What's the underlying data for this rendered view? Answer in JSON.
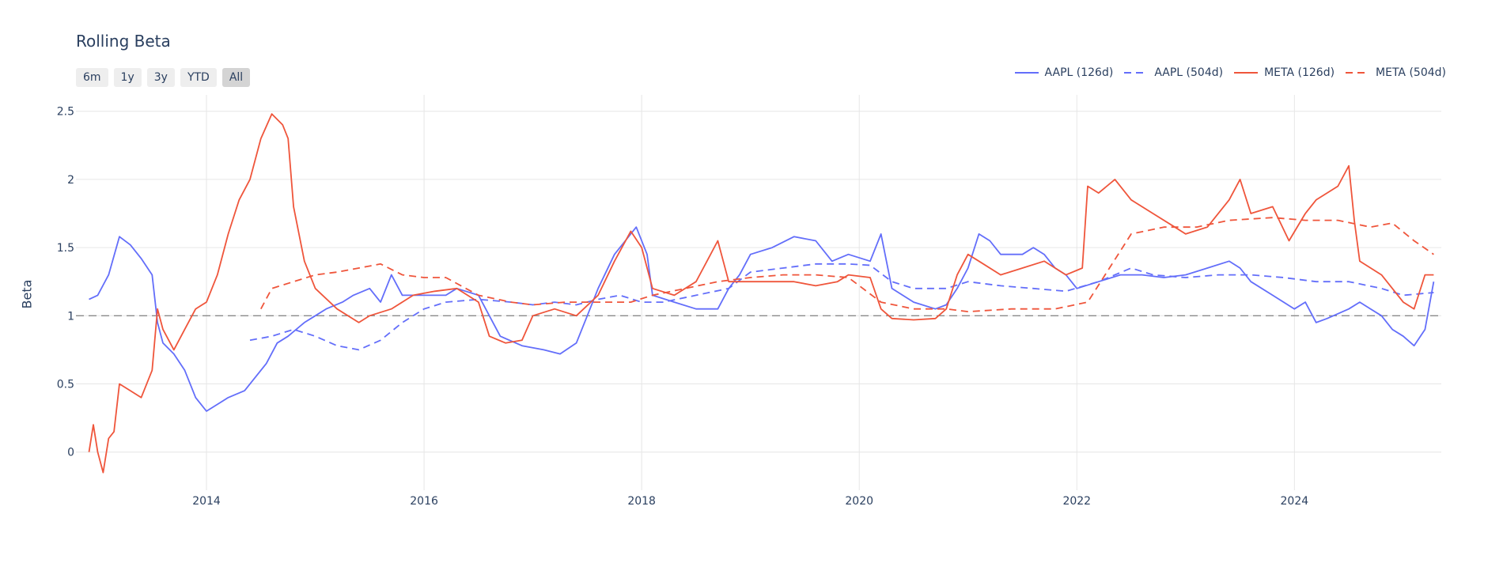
{
  "title": "Rolling Beta",
  "range_buttons": [
    {
      "label": "6m",
      "active": false
    },
    {
      "label": "1y",
      "active": false
    },
    {
      "label": "3y",
      "active": false
    },
    {
      "label": "YTD",
      "active": false
    },
    {
      "label": "All",
      "active": true
    }
  ],
  "colors": {
    "aapl": "#636efa",
    "meta": "#ef553b",
    "reference": "#8a8a8a",
    "grid": "#e6e6e6"
  },
  "chart_data": {
    "type": "line",
    "title": "Rolling Beta",
    "xlabel": "",
    "ylabel": "Beta",
    "xlim": [
      2012.8,
      2025.35
    ],
    "ylim": [
      -0.28,
      2.62
    ],
    "x_ticks": [
      "2014",
      "2016",
      "2018",
      "2020",
      "2022",
      "2024"
    ],
    "y_ticks": [
      "0",
      "0.5",
      "1",
      "1.5",
      "2",
      "2.5"
    ],
    "grid": true,
    "legend_position": "top-right",
    "reference_line": {
      "y": 1,
      "style": "dashed"
    },
    "series": [
      {
        "name": "AAPL (126d)",
        "color": "#636efa",
        "dash": "solid",
        "points": [
          [
            2012.92,
            1.12
          ],
          [
            2013.0,
            1.15
          ],
          [
            2013.1,
            1.3
          ],
          [
            2013.2,
            1.58
          ],
          [
            2013.3,
            1.52
          ],
          [
            2013.4,
            1.42
          ],
          [
            2013.5,
            1.3
          ],
          [
            2013.55,
            0.95
          ],
          [
            2013.6,
            0.8
          ],
          [
            2013.7,
            0.72
          ],
          [
            2013.8,
            0.6
          ],
          [
            2013.9,
            0.4
          ],
          [
            2014.0,
            0.3
          ],
          [
            2014.1,
            0.35
          ],
          [
            2014.2,
            0.4
          ],
          [
            2014.35,
            0.45
          ],
          [
            2014.45,
            0.55
          ],
          [
            2014.55,
            0.65
          ],
          [
            2014.65,
            0.8
          ],
          [
            2014.75,
            0.85
          ],
          [
            2014.9,
            0.95
          ],
          [
            2015.0,
            1.0
          ],
          [
            2015.1,
            1.05
          ],
          [
            2015.25,
            1.1
          ],
          [
            2015.35,
            1.15
          ],
          [
            2015.5,
            1.2
          ],
          [
            2015.6,
            1.1
          ],
          [
            2015.7,
            1.3
          ],
          [
            2015.8,
            1.15
          ],
          [
            2016.0,
            1.15
          ],
          [
            2016.2,
            1.15
          ],
          [
            2016.3,
            1.2
          ],
          [
            2016.5,
            1.15
          ],
          [
            2016.6,
            1.0
          ],
          [
            2016.7,
            0.85
          ],
          [
            2016.9,
            0.78
          ],
          [
            2017.1,
            0.75
          ],
          [
            2017.25,
            0.72
          ],
          [
            2017.4,
            0.8
          ],
          [
            2017.5,
            1.0
          ],
          [
            2017.6,
            1.2
          ],
          [
            2017.75,
            1.45
          ],
          [
            2017.85,
            1.55
          ],
          [
            2017.95,
            1.65
          ],
          [
            2018.05,
            1.45
          ],
          [
            2018.1,
            1.15
          ],
          [
            2018.3,
            1.1
          ],
          [
            2018.5,
            1.05
          ],
          [
            2018.7,
            1.05
          ],
          [
            2018.8,
            1.2
          ],
          [
            2018.9,
            1.3
          ],
          [
            2019.0,
            1.45
          ],
          [
            2019.2,
            1.5
          ],
          [
            2019.4,
            1.58
          ],
          [
            2019.6,
            1.55
          ],
          [
            2019.75,
            1.4
          ],
          [
            2019.9,
            1.45
          ],
          [
            2020.1,
            1.4
          ],
          [
            2020.2,
            1.6
          ],
          [
            2020.3,
            1.2
          ],
          [
            2020.5,
            1.1
          ],
          [
            2020.7,
            1.05
          ],
          [
            2020.8,
            1.08
          ],
          [
            2020.9,
            1.2
          ],
          [
            2021.0,
            1.35
          ],
          [
            2021.1,
            1.6
          ],
          [
            2021.2,
            1.55
          ],
          [
            2021.3,
            1.45
          ],
          [
            2021.5,
            1.45
          ],
          [
            2021.6,
            1.5
          ],
          [
            2021.7,
            1.45
          ],
          [
            2021.8,
            1.35
          ],
          [
            2021.9,
            1.3
          ],
          [
            2022.0,
            1.2
          ],
          [
            2022.2,
            1.25
          ],
          [
            2022.4,
            1.3
          ],
          [
            2022.6,
            1.3
          ],
          [
            2022.8,
            1.28
          ],
          [
            2023.0,
            1.3
          ],
          [
            2023.2,
            1.35
          ],
          [
            2023.4,
            1.4
          ],
          [
            2023.5,
            1.35
          ],
          [
            2023.6,
            1.25
          ],
          [
            2023.8,
            1.15
          ],
          [
            2024.0,
            1.05
          ],
          [
            2024.1,
            1.1
          ],
          [
            2024.2,
            0.95
          ],
          [
            2024.3,
            0.98
          ],
          [
            2024.5,
            1.05
          ],
          [
            2024.6,
            1.1
          ],
          [
            2024.7,
            1.05
          ],
          [
            2024.8,
            1.0
          ],
          [
            2024.9,
            0.9
          ],
          [
            2025.0,
            0.85
          ],
          [
            2025.1,
            0.78
          ],
          [
            2025.2,
            0.9
          ],
          [
            2025.28,
            1.25
          ]
        ]
      },
      {
        "name": "AAPL (504d)",
        "color": "#636efa",
        "dash": "dashed",
        "points": [
          [
            2014.4,
            0.82
          ],
          [
            2014.6,
            0.85
          ],
          [
            2014.8,
            0.9
          ],
          [
            2015.0,
            0.85
          ],
          [
            2015.2,
            0.78
          ],
          [
            2015.4,
            0.75
          ],
          [
            2015.6,
            0.82
          ],
          [
            2015.8,
            0.95
          ],
          [
            2016.0,
            1.05
          ],
          [
            2016.2,
            1.1
          ],
          [
            2016.5,
            1.12
          ],
          [
            2016.8,
            1.1
          ],
          [
            2017.0,
            1.08
          ],
          [
            2017.2,
            1.1
          ],
          [
            2017.4,
            1.08
          ],
          [
            2017.6,
            1.12
          ],
          [
            2017.8,
            1.15
          ],
          [
            2018.0,
            1.1
          ],
          [
            2018.2,
            1.1
          ],
          [
            2018.5,
            1.15
          ],
          [
            2018.8,
            1.2
          ],
          [
            2019.0,
            1.32
          ],
          [
            2019.3,
            1.35
          ],
          [
            2019.6,
            1.38
          ],
          [
            2019.9,
            1.38
          ],
          [
            2020.1,
            1.37
          ],
          [
            2020.3,
            1.25
          ],
          [
            2020.5,
            1.2
          ],
          [
            2020.8,
            1.2
          ],
          [
            2021.0,
            1.25
          ],
          [
            2021.3,
            1.22
          ],
          [
            2021.6,
            1.2
          ],
          [
            2021.9,
            1.18
          ],
          [
            2022.2,
            1.25
          ],
          [
            2022.5,
            1.35
          ],
          [
            2022.7,
            1.3
          ],
          [
            2023.0,
            1.28
          ],
          [
            2023.3,
            1.3
          ],
          [
            2023.6,
            1.3
          ],
          [
            2023.9,
            1.28
          ],
          [
            2024.2,
            1.25
          ],
          [
            2024.5,
            1.25
          ],
          [
            2024.8,
            1.2
          ],
          [
            2025.0,
            1.15
          ],
          [
            2025.28,
            1.17
          ]
        ]
      },
      {
        "name": "META (126d)",
        "color": "#ef553b",
        "dash": "solid",
        "points": [
          [
            2012.92,
            0.0
          ],
          [
            2012.96,
            0.2
          ],
          [
            2013.0,
            0.0
          ],
          [
            2013.05,
            -0.15
          ],
          [
            2013.1,
            0.1
          ],
          [
            2013.15,
            0.15
          ],
          [
            2013.2,
            0.5
          ],
          [
            2013.3,
            0.45
          ],
          [
            2013.4,
            0.4
          ],
          [
            2013.5,
            0.6
          ],
          [
            2013.55,
            1.05
          ],
          [
            2013.6,
            0.9
          ],
          [
            2013.7,
            0.75
          ],
          [
            2013.8,
            0.9
          ],
          [
            2013.9,
            1.05
          ],
          [
            2014.0,
            1.1
          ],
          [
            2014.1,
            1.3
          ],
          [
            2014.2,
            1.6
          ],
          [
            2014.3,
            1.85
          ],
          [
            2014.4,
            2.0
          ],
          [
            2014.5,
            2.3
          ],
          [
            2014.6,
            2.48
          ],
          [
            2014.7,
            2.4
          ],
          [
            2014.75,
            2.3
          ],
          [
            2014.8,
            1.8
          ],
          [
            2014.9,
            1.4
          ],
          [
            2015.0,
            1.2
          ],
          [
            2015.2,
            1.05
          ],
          [
            2015.4,
            0.95
          ],
          [
            2015.5,
            1.0
          ],
          [
            2015.7,
            1.05
          ],
          [
            2015.9,
            1.15
          ],
          [
            2016.1,
            1.18
          ],
          [
            2016.3,
            1.2
          ],
          [
            2016.5,
            1.1
          ],
          [
            2016.6,
            0.85
          ],
          [
            2016.75,
            0.8
          ],
          [
            2016.9,
            0.82
          ],
          [
            2017.0,
            1.0
          ],
          [
            2017.2,
            1.05
          ],
          [
            2017.4,
            1.0
          ],
          [
            2017.6,
            1.15
          ],
          [
            2017.75,
            1.4
          ],
          [
            2017.9,
            1.62
          ],
          [
            2018.0,
            1.5
          ],
          [
            2018.1,
            1.2
          ],
          [
            2018.3,
            1.15
          ],
          [
            2018.5,
            1.25
          ],
          [
            2018.6,
            1.4
          ],
          [
            2018.7,
            1.55
          ],
          [
            2018.8,
            1.25
          ],
          [
            2019.0,
            1.25
          ],
          [
            2019.2,
            1.25
          ],
          [
            2019.4,
            1.25
          ],
          [
            2019.6,
            1.22
          ],
          [
            2019.8,
            1.25
          ],
          [
            2019.9,
            1.3
          ],
          [
            2020.1,
            1.28
          ],
          [
            2020.2,
            1.05
          ],
          [
            2020.3,
            0.98
          ],
          [
            2020.5,
            0.97
          ],
          [
            2020.7,
            0.98
          ],
          [
            2020.8,
            1.05
          ],
          [
            2020.9,
            1.3
          ],
          [
            2021.0,
            1.45
          ],
          [
            2021.1,
            1.4
          ],
          [
            2021.3,
            1.3
          ],
          [
            2021.5,
            1.35
          ],
          [
            2021.7,
            1.4
          ],
          [
            2021.9,
            1.3
          ],
          [
            2022.05,
            1.35
          ],
          [
            2022.1,
            1.95
          ],
          [
            2022.2,
            1.9
          ],
          [
            2022.35,
            2.0
          ],
          [
            2022.5,
            1.85
          ],
          [
            2022.7,
            1.75
          ],
          [
            2022.9,
            1.65
          ],
          [
            2023.0,
            1.6
          ],
          [
            2023.2,
            1.65
          ],
          [
            2023.4,
            1.85
          ],
          [
            2023.5,
            2.0
          ],
          [
            2023.6,
            1.75
          ],
          [
            2023.8,
            1.8
          ],
          [
            2023.95,
            1.55
          ],
          [
            2024.1,
            1.75
          ],
          [
            2024.2,
            1.85
          ],
          [
            2024.4,
            1.95
          ],
          [
            2024.5,
            2.1
          ],
          [
            2024.55,
            1.7
          ],
          [
            2024.6,
            1.4
          ],
          [
            2024.8,
            1.3
          ],
          [
            2025.0,
            1.1
          ],
          [
            2025.1,
            1.05
          ],
          [
            2025.2,
            1.3
          ],
          [
            2025.28,
            1.3
          ]
        ]
      },
      {
        "name": "META (504d)",
        "color": "#ef553b",
        "dash": "dashed",
        "points": [
          [
            2014.5,
            1.05
          ],
          [
            2014.6,
            1.2
          ],
          [
            2014.8,
            1.25
          ],
          [
            2015.0,
            1.3
          ],
          [
            2015.2,
            1.32
          ],
          [
            2015.4,
            1.35
          ],
          [
            2015.6,
            1.38
          ],
          [
            2015.8,
            1.3
          ],
          [
            2016.0,
            1.28
          ],
          [
            2016.2,
            1.28
          ],
          [
            2016.5,
            1.15
          ],
          [
            2016.8,
            1.1
          ],
          [
            2017.0,
            1.08
          ],
          [
            2017.3,
            1.1
          ],
          [
            2017.6,
            1.1
          ],
          [
            2017.9,
            1.1
          ],
          [
            2018.1,
            1.15
          ],
          [
            2018.4,
            1.2
          ],
          [
            2018.7,
            1.25
          ],
          [
            2019.0,
            1.28
          ],
          [
            2019.3,
            1.3
          ],
          [
            2019.6,
            1.3
          ],
          [
            2019.9,
            1.28
          ],
          [
            2020.2,
            1.1
          ],
          [
            2020.5,
            1.05
          ],
          [
            2020.8,
            1.05
          ],
          [
            2021.0,
            1.03
          ],
          [
            2021.4,
            1.05
          ],
          [
            2021.8,
            1.05
          ],
          [
            2022.1,
            1.1
          ],
          [
            2022.3,
            1.35
          ],
          [
            2022.5,
            1.6
          ],
          [
            2022.8,
            1.65
          ],
          [
            2023.1,
            1.65
          ],
          [
            2023.4,
            1.7
          ],
          [
            2023.8,
            1.72
          ],
          [
            2024.1,
            1.7
          ],
          [
            2024.4,
            1.7
          ],
          [
            2024.7,
            1.65
          ],
          [
            2024.9,
            1.68
          ],
          [
            2025.1,
            1.55
          ],
          [
            2025.28,
            1.45
          ]
        ]
      }
    ]
  }
}
